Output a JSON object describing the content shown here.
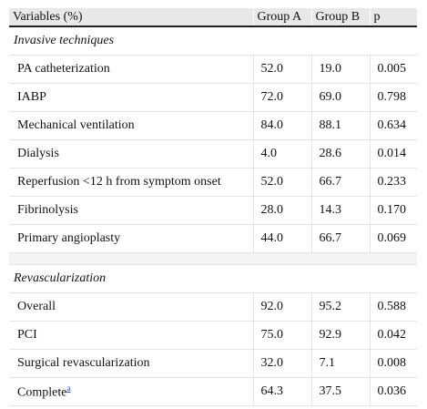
{
  "table": {
    "headers": [
      "Variables (%)",
      "Group A",
      "Group B",
      "p"
    ],
    "sections": [
      {
        "title": "Invasive techniques",
        "rows": [
          [
            "PA catheterization",
            "52.0",
            "19.0",
            "0.005"
          ],
          [
            "IABP",
            "72.0",
            "69.0",
            "0.798"
          ],
          [
            "Mechanical ventilation",
            "84.0",
            "88.1",
            "0.634"
          ],
          [
            "Dialysis",
            "4.0",
            "28.6",
            "0.014"
          ],
          [
            "Reperfusion <12 h from symptom onset",
            "52.0",
            "66.7",
            "0.233"
          ],
          [
            "Fibrinolysis",
            "28.0",
            "14.3",
            "0.170"
          ],
          [
            "Primary angioplasty",
            "44.0",
            "66.7",
            "0.069"
          ]
        ]
      },
      {
        "title": "Revascularization",
        "rows": [
          [
            "Overall",
            "92.0",
            "95.2",
            "0.588"
          ],
          [
            "PCI",
            "75.0",
            "92.9",
            "0.042"
          ],
          [
            "Surgical revascularization",
            "32.0",
            "7.1",
            "0.008"
          ],
          [
            "Complete",
            "64.3",
            "37.5",
            "0.036"
          ]
        ]
      }
    ],
    "footnote_marker": "a"
  }
}
